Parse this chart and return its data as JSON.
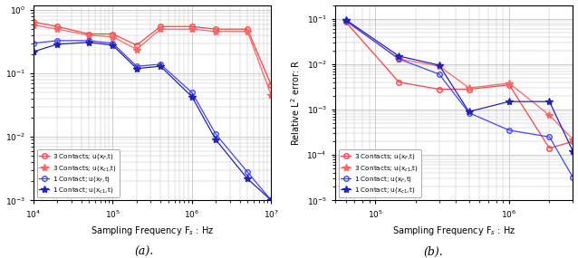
{
  "plot_a": {
    "xlabel": "Sampling Frequency F$_s$ : Hz",
    "ylabel": "",
    "xlim": [
      10000.0,
      10000000.0
    ],
    "ylim": [
      0.001,
      1.2
    ],
    "series": [
      {
        "label": "3 Contacts; u(x$_{F}$,t)",
        "color": "#FF4444",
        "marker": "o",
        "mfc": "none",
        "x": [
          10000.0,
          20000.0,
          50000.0,
          100000.0,
          200000.0,
          400000.0,
          1000000.0,
          2000000.0,
          5000000.0,
          10000000.0
        ],
        "y": [
          0.65,
          0.55,
          0.42,
          0.42,
          0.28,
          0.55,
          0.55,
          0.5,
          0.5,
          0.065
        ]
      },
      {
        "label": "3 Contacts; u(x$_{c1}$,t)",
        "color": "#FF6666",
        "marker": "*",
        "mfc": "#FF6666",
        "x": [
          10000.0,
          20000.0,
          50000.0,
          100000.0,
          200000.0,
          400000.0,
          1000000.0,
          2000000.0,
          5000000.0,
          10000000.0
        ],
        "y": [
          0.58,
          0.5,
          0.4,
          0.38,
          0.24,
          0.5,
          0.5,
          0.46,
          0.46,
          0.045
        ]
      },
      {
        "label": "1 Contact; u(x$_{F}$,t)",
        "color": "#4444FF",
        "marker": "o",
        "mfc": "none",
        "x": [
          10000.0,
          20000.0,
          50000.0,
          100000.0,
          200000.0,
          400000.0,
          1000000.0,
          2000000.0,
          5000000.0,
          10000000.0
        ],
        "y": [
          0.3,
          0.33,
          0.33,
          0.3,
          0.13,
          0.14,
          0.05,
          0.011,
          0.0028,
          0.001
        ]
      },
      {
        "label": "1 Contact; u(x$_{c1}$,t)",
        "color": "#2222BB",
        "marker": "*",
        "mfc": "#2222BB",
        "x": [
          10000.0,
          20000.0,
          50000.0,
          100000.0,
          200000.0,
          400000.0,
          1000000.0,
          2000000.0,
          5000000.0,
          10000000.0
        ],
        "y": [
          0.22,
          0.29,
          0.31,
          0.28,
          0.12,
          0.13,
          0.043,
          0.009,
          0.0022,
          0.001
        ]
      }
    ]
  },
  "plot_b": {
    "xlabel": "Sampling Frequency F$_s$ : Hz",
    "ylabel": "Relative L$^2$ error: R",
    "xlim": [
      50000.0,
      3000000.0
    ],
    "ylim": [
      1e-05,
      0.2
    ],
    "series": [
      {
        "label": "3 Contacts; u(x$_{F}$,t)",
        "color": "#FF4444",
        "marker": "o",
        "mfc": "none",
        "x": [
          60000.0,
          150000.0,
          300000.0,
          500000.0,
          1000000.0,
          2000000.0,
          3000000.0
        ],
        "y": [
          0.085,
          0.004,
          0.0028,
          0.0028,
          0.0035,
          0.00014,
          0.0002
        ]
      },
      {
        "label": "3 Contacts; u(x$_{c1}$,t)",
        "color": "#FF6666",
        "marker": "*",
        "mfc": "#FF6666",
        "x": [
          60000.0,
          150000.0,
          300000.0,
          500000.0,
          1000000.0,
          2000000.0,
          3000000.0
        ],
        "y": [
          0.09,
          0.013,
          0.009,
          0.003,
          0.0038,
          0.00075,
          0.00022
        ]
      },
      {
        "label": "1 Contact; u(x$_{F}$,t)",
        "color": "#4444FF",
        "marker": "o",
        "mfc": "none",
        "x": [
          60000.0,
          150000.0,
          300000.0,
          500000.0,
          1000000.0,
          2000000.0,
          3000000.0
        ],
        "y": [
          0.09,
          0.013,
          0.006,
          0.00085,
          0.00035,
          0.00025,
          3.2e-05
        ]
      },
      {
        "label": "1 Contact; u(x$_{c1}$,t)",
        "color": "#2222BB",
        "marker": "*",
        "mfc": "#2222BB",
        "x": [
          60000.0,
          150000.0,
          300000.0,
          500000.0,
          1000000.0,
          2000000.0,
          3000000.0
        ],
        "y": [
          0.095,
          0.015,
          0.0095,
          0.0009,
          0.0015,
          0.0015,
          0.00012
        ]
      }
    ]
  },
  "caption_a": "(a).",
  "caption_b": "(b).",
  "fig_background": "#FFFFFF",
  "grid_color": "#BBBBBB"
}
